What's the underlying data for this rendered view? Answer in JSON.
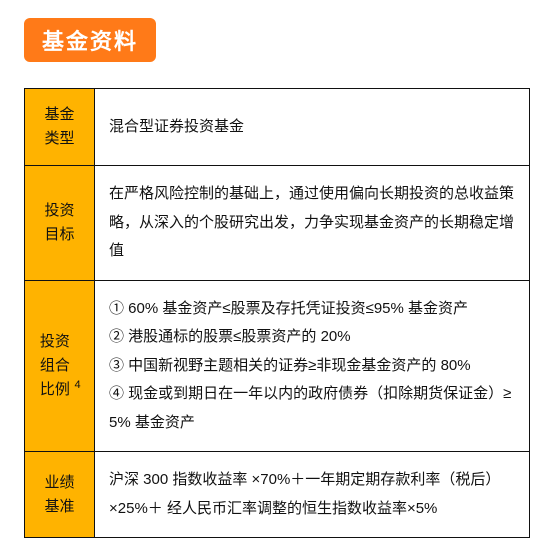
{
  "badge": "基金资料",
  "table": {
    "rows": [
      {
        "label": "基金类型",
        "content": "混合型证券投资基金",
        "sup": ""
      },
      {
        "label": "投资目标",
        "content": "在严格风险控制的基础上，通过使用偏向长期投资的总收益策略，从深入的个股研究出发，力争实现基金资产的长期稳定增值",
        "sup": ""
      },
      {
        "label": "投资组合比例",
        "content": "① 60% 基金资产≤股票及存托凭证投资≤95% 基金资产\n② 港股通标的股票≤股票资产的 20%\n③ 中国新视野主题相关的证券≥非现金基金资产的 80%\n④ 现金或到期日在一年以内的政府债券（扣除期货保证金）≥ 5% 基金资产",
        "sup": "4"
      },
      {
        "label": "业绩基准",
        "content": "沪深 300 指数收益率 ×70%＋一年期定期存款利率（税后）×25%＋ 经人民币汇率调整的恒生指数收益率×5%",
        "sup": ""
      }
    ]
  },
  "colors": {
    "badge_bg": "#ff7a18",
    "badge_text": "#ffffff",
    "label_bg": "#ffb300",
    "border": "#111111",
    "text": "#111111",
    "page_bg": "#ffffff"
  }
}
